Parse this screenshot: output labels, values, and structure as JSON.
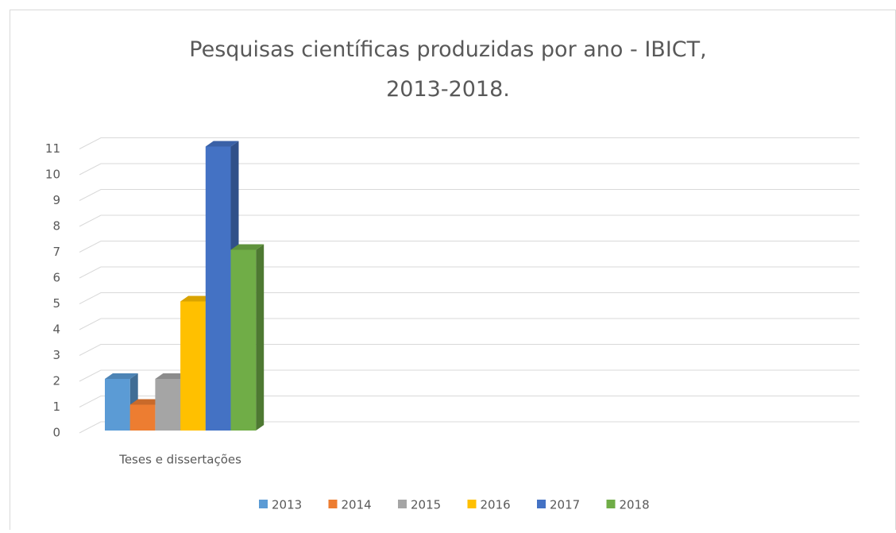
{
  "chart_data": {
    "type": "bar3d",
    "title": "Pesquisas científicas produzidas por ano - IBICT, 2013-2018.",
    "categories": [
      "Teses e dissertações"
    ],
    "series": [
      {
        "name": "2013",
        "color": "#5b9bd5",
        "values": [
          2
        ]
      },
      {
        "name": "2014",
        "color": "#ed7d31",
        "values": [
          1
        ]
      },
      {
        "name": "2015",
        "color": "#a5a5a5",
        "values": [
          2
        ]
      },
      {
        "name": "2016",
        "color": "#ffc000",
        "values": [
          5
        ]
      },
      {
        "name": "2017",
        "color": "#4472c4",
        "values": [
          11
        ]
      },
      {
        "name": "2018",
        "color": "#70ad47",
        "values": [
          7
        ]
      }
    ],
    "ylim": [
      0,
      11
    ],
    "yticks": [
      0,
      1,
      2,
      3,
      4,
      5,
      6,
      7,
      8,
      9,
      10,
      11
    ],
    "grid": true,
    "legend": "bottom"
  }
}
